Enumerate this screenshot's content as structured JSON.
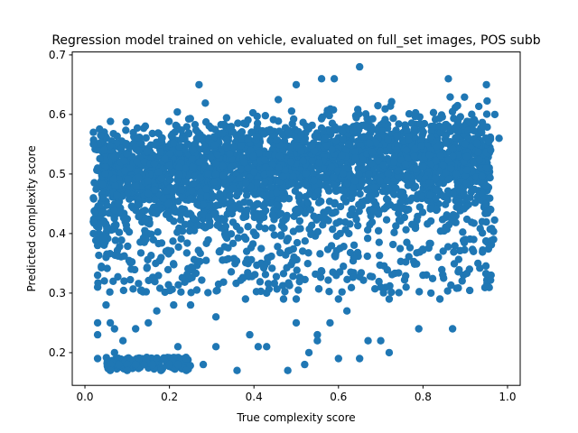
{
  "chart_data": {
    "type": "scatter",
    "title": "Regression model trained on vehicle, evaluated on full_set images, POS subb",
    "xlabel": "True complexity score",
    "ylabel": "Predicted complexity score",
    "xlim": [
      -0.03,
      1.03
    ],
    "ylim": [
      0.145,
      0.705
    ],
    "xticks": [
      "0.0",
      "0.2",
      "0.4",
      "0.6",
      "0.8",
      "1.0"
    ],
    "yticks": [
      "0.2",
      "0.3",
      "0.4",
      "0.5",
      "0.6",
      "0.7"
    ],
    "grid": false,
    "marker_color": "#1f77b4",
    "series": [
      {
        "name": "",
        "density_description": "very dense cloud",
        "x_range": [
          0.01,
          0.99
        ],
        "y_range": [
          0.17,
          0.68
        ],
        "points": [
          [
            0.02,
            0.57
          ],
          [
            0.02,
            0.55
          ],
          [
            0.03,
            0.51
          ],
          [
            0.02,
            0.46
          ],
          [
            0.02,
            0.42
          ],
          [
            0.02,
            0.4
          ],
          [
            0.03,
            0.38
          ],
          [
            0.03,
            0.33
          ],
          [
            0.03,
            0.31
          ],
          [
            0.03,
            0.25
          ],
          [
            0.03,
            0.23
          ],
          [
            0.03,
            0.19
          ],
          [
            0.05,
            0.36
          ],
          [
            0.05,
            0.28
          ],
          [
            0.06,
            0.18
          ],
          [
            0.06,
            0.17
          ],
          [
            0.07,
            0.2
          ],
          [
            0.07,
            0.24
          ],
          [
            0.08,
            0.18
          ],
          [
            0.1,
            0.18
          ],
          [
            0.1,
            0.17
          ],
          [
            0.12,
            0.18
          ],
          [
            0.14,
            0.18
          ],
          [
            0.16,
            0.18
          ],
          [
            0.18,
            0.17
          ],
          [
            0.2,
            0.18
          ],
          [
            0.22,
            0.18
          ],
          [
            0.24,
            0.17
          ],
          [
            0.22,
            0.21
          ],
          [
            0.24,
            0.19
          ],
          [
            0.28,
            0.18
          ],
          [
            0.31,
            0.21
          ],
          [
            0.36,
            0.17
          ],
          [
            0.39,
            0.23
          ],
          [
            0.41,
            0.21
          ],
          [
            0.43,
            0.21
          ],
          [
            0.48,
            0.17
          ],
          [
            0.5,
            0.25
          ],
          [
            0.52,
            0.18
          ],
          [
            0.53,
            0.2
          ],
          [
            0.55,
            0.23
          ],
          [
            0.55,
            0.22
          ],
          [
            0.58,
            0.25
          ],
          [
            0.6,
            0.19
          ],
          [
            0.65,
            0.19
          ],
          [
            0.67,
            0.22
          ],
          [
            0.7,
            0.22
          ],
          [
            0.72,
            0.2
          ],
          [
            0.79,
            0.24
          ],
          [
            0.87,
            0.24
          ],
          [
            0.65,
            0.68
          ],
          [
            0.59,
            0.66
          ],
          [
            0.56,
            0.66
          ],
          [
            0.27,
            0.65
          ],
          [
            0.5,
            0.65
          ],
          [
            0.86,
            0.66
          ],
          [
            0.95,
            0.65
          ],
          [
            0.97,
            0.6
          ],
          [
            0.98,
            0.56
          ],
          [
            0.96,
            0.54
          ],
          [
            0.95,
            0.51
          ],
          [
            0.95,
            0.48
          ],
          [
            0.96,
            0.44
          ],
          [
            0.94,
            0.42
          ],
          [
            0.92,
            0.39
          ],
          [
            0.9,
            0.39
          ],
          [
            0.93,
            0.35
          ],
          [
            0.91,
            0.34
          ],
          [
            0.84,
            0.29
          ],
          [
            0.8,
            0.33
          ],
          [
            0.76,
            0.31
          ],
          [
            0.72,
            0.29
          ],
          [
            0.7,
            0.31
          ],
          [
            0.62,
            0.27
          ],
          [
            0.6,
            0.29
          ],
          [
            0.5,
            0.29
          ],
          [
            0.47,
            0.29
          ],
          [
            0.43,
            0.3
          ],
          [
            0.38,
            0.29
          ],
          [
            0.31,
            0.26
          ],
          [
            0.25,
            0.28
          ],
          [
            0.21,
            0.28
          ],
          [
            0.17,
            0.27
          ],
          [
            0.15,
            0.25
          ],
          [
            0.12,
            0.24
          ],
          [
            0.09,
            0.22
          ],
          [
            0.06,
            0.25
          ]
        ]
      }
    ]
  }
}
